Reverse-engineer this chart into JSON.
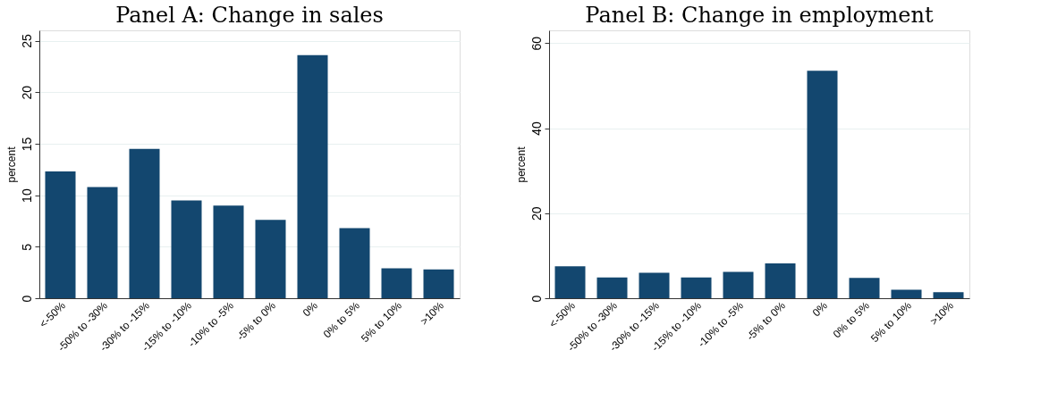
{
  "chart_data": [
    {
      "type": "bar",
      "title": "Panel A: Change in sales",
      "ylabel": "percent",
      "categories": [
        "<-50%",
        "-50% to -30%",
        "-30% to -15%",
        "-15% to -10%",
        "-10% to -5%",
        "-5% to 0%",
        "0%",
        "0% to 5%",
        "5% to 10%",
        ">10%"
      ],
      "values": [
        12.3,
        10.8,
        14.5,
        9.5,
        9.0,
        7.6,
        23.6,
        6.8,
        2.9,
        2.8
      ],
      "color": "#13476f",
      "ylim": [
        0,
        26
      ],
      "yticks": [
        0,
        5,
        10,
        15,
        20,
        25
      ],
      "grid": "y"
    },
    {
      "type": "bar",
      "title": "Panel B: Change in employment",
      "ylabel": "percent",
      "categories": [
        "<-50%",
        "-50% to -30%",
        "-30% to -15%",
        "-15% to -10%",
        "-10% to -5%",
        "-5% to 0%",
        "0%",
        "0% to 5%",
        "5% to 10%",
        ">10%"
      ],
      "values": [
        7.5,
        4.9,
        6.0,
        4.9,
        6.2,
        8.2,
        53.5,
        4.8,
        2.0,
        1.4
      ],
      "color": "#13476f",
      "ylim": [
        0,
        63
      ],
      "yticks": [
        0,
        20,
        40,
        60
      ],
      "grid": "y"
    }
  ]
}
